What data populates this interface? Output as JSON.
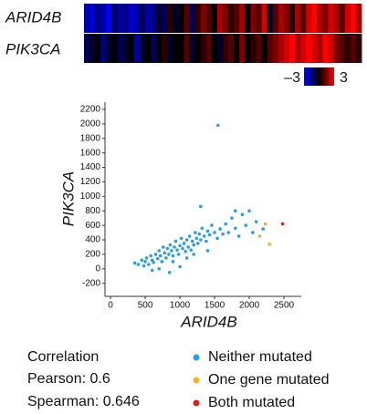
{
  "chart_data": [
    {
      "type": "heatmap",
      "rows": [
        "ARID4B",
        "PIK3CA"
      ],
      "values": [
        [
          -2,
          -2.5,
          -1.5,
          -2,
          -3,
          -1,
          -2,
          -1.5,
          -2.5,
          -2,
          -1,
          -2,
          -1.5,
          -0.5,
          -1,
          0.5,
          -0.5,
          0,
          1,
          -1,
          0.5,
          1.5,
          1,
          0,
          2,
          1.5,
          0.5,
          1,
          2,
          0,
          1.5,
          1,
          2.5,
          -0.5,
          1,
          2,
          1.5,
          0.5,
          2,
          1,
          2.5,
          3,
          2,
          1.5,
          2.5,
          2,
          1,
          2.5,
          3,
          2
        ],
        [
          -1,
          -0.5,
          0,
          -1.5,
          -0.5,
          0,
          -1,
          -0.5,
          0,
          -2,
          -0.5,
          0,
          -1,
          0,
          0.5,
          -0.5,
          0,
          0,
          1,
          -0.5,
          0,
          0.5,
          1,
          0,
          -0.5,
          0.5,
          1,
          0,
          1.5,
          0,
          0.5,
          1,
          0,
          1,
          1.5,
          2,
          2.5,
          3,
          2,
          2.5,
          3,
          2.5,
          2,
          3,
          2.5,
          1.5,
          1,
          0.5,
          1,
          0.5
        ]
      ],
      "colors": [
        "#0000ff",
        "#000000",
        "#ff0000"
      ],
      "zlim": [
        -3,
        3
      ],
      "zticks": [
        {
          "value": -3,
          "label": "–3"
        },
        3
      ]
    },
    {
      "type": "scatter",
      "xlabel": "ARID4B",
      "ylabel": "PIK3CA",
      "xlim": [
        -80,
        2750
      ],
      "ylim": [
        -380,
        2300
      ],
      "xticks": [
        0,
        500,
        1000,
        1500,
        2000,
        2500
      ],
      "yticks": [
        -200,
        0,
        200,
        400,
        600,
        800,
        1000,
        1200,
        1400,
        1600,
        1800,
        2000,
        2200
      ],
      "series": [
        {
          "name": "Neither mutated",
          "color": "#2b9fe0",
          "x": [
            350,
            400,
            450,
            480,
            500,
            520,
            550,
            580,
            600,
            620,
            650,
            680,
            700,
            720,
            740,
            760,
            780,
            800,
            820,
            840,
            860,
            880,
            900,
            920,
            940,
            960,
            980,
            1000,
            1020,
            1040,
            1060,
            1080,
            1100,
            1120,
            1140,
            1160,
            1180,
            1200,
            1220,
            1240,
            1260,
            1280,
            1300,
            1320,
            1350,
            1380,
            1400,
            1430,
            1460,
            1500,
            1540,
            1580,
            1620,
            1660,
            1700,
            1750,
            1800,
            1850,
            1900,
            1950,
            2000,
            2050,
            2100,
            2200,
            1550,
            1300,
            700,
            850,
            1000,
            1100,
            600,
            900,
            1200,
            1400,
            1800
          ],
          "y": [
            80,
            60,
            120,
            40,
            100,
            150,
            60,
            180,
            120,
            90,
            200,
            140,
            250,
            180,
            100,
            300,
            220,
            150,
            280,
            200,
            330,
            250,
            180,
            300,
            380,
            260,
            200,
            320,
            420,
            280,
            350,
            240,
            400,
            300,
            450,
            260,
            380,
            330,
            500,
            420,
            350,
            480,
            400,
            560,
            450,
            380,
            520,
            470,
            600,
            500,
            420,
            550,
            480,
            620,
            500,
            700,
            560,
            450,
            750,
            600,
            800,
            500,
            650,
            550,
            1980,
            860,
            0,
            -50,
            30,
            150,
            -20,
            100,
            200,
            250,
            800
          ]
        },
        {
          "name": "One gene mutated",
          "color": "#f0b030",
          "x": [
            2230,
            2290,
            2150
          ],
          "y": [
            620,
            340,
            450
          ]
        },
        {
          "name": "Both mutated",
          "color": "#e02020",
          "x": [
            2480
          ],
          "y": [
            620
          ]
        }
      ],
      "annotations": [
        "Correlation",
        "Pearson: 0.6",
        "Spearman: 0.646"
      ]
    }
  ]
}
